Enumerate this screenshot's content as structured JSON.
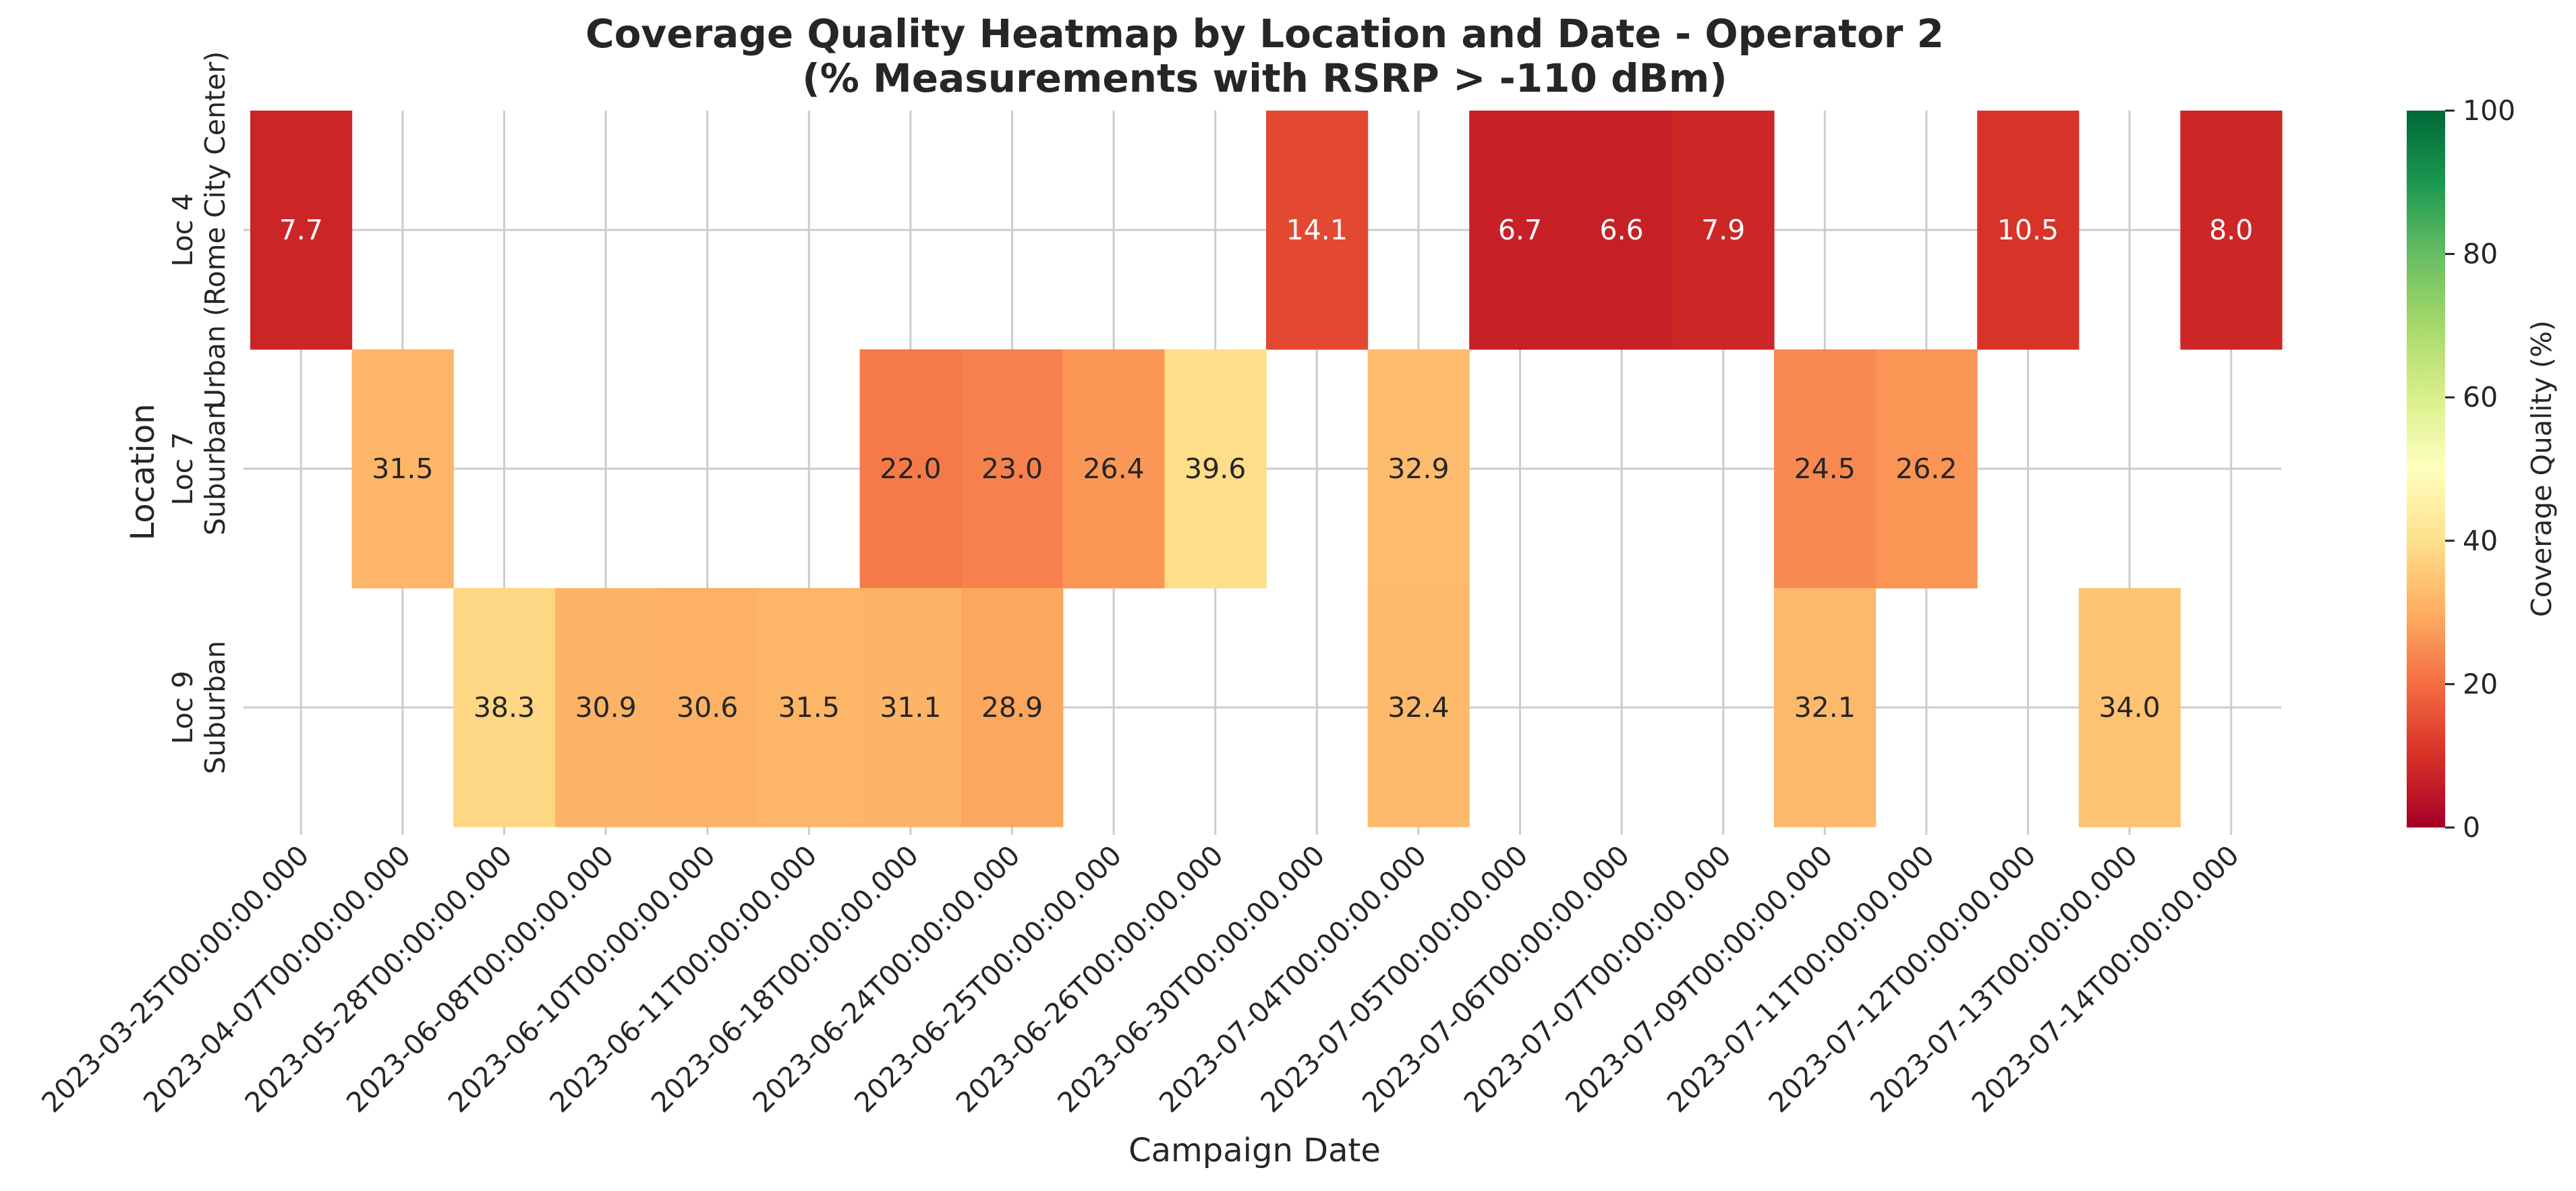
{
  "chart_data": {
    "type": "heatmap",
    "title": "Coverage Quality Heatmap by Location and Date - Operator 2",
    "subtitle": "(% Measurements with RSRP > -110 dBm)",
    "xlabel": "Campaign Date",
    "ylabel": "Location",
    "x": [
      "2023-03-25T00:00:00.000",
      "2023-04-07T00:00:00.000",
      "2023-05-28T00:00:00.000",
      "2023-06-08T00:00:00.000",
      "2023-06-10T00:00:00.000",
      "2023-06-11T00:00:00.000",
      "2023-06-18T00:00:00.000",
      "2023-06-24T00:00:00.000",
      "2023-06-25T00:00:00.000",
      "2023-06-26T00:00:00.000",
      "2023-06-30T00:00:00.000",
      "2023-07-04T00:00:00.000",
      "2023-07-05T00:00:00.000",
      "2023-07-06T00:00:00.000",
      "2023-07-07T00:00:00.000",
      "2023-07-09T00:00:00.000",
      "2023-07-11T00:00:00.000",
      "2023-07-12T00:00:00.000",
      "2023-07-13T00:00:00.000",
      "2023-07-14T00:00:00.000"
    ],
    "y": [
      [
        "Loc 4",
        "Urban (Rome City Center)"
      ],
      [
        "Loc 7",
        "Suburban"
      ],
      [
        "Loc 9",
        "Suburban"
      ]
    ],
    "values": [
      [
        7.7,
        null,
        null,
        null,
        null,
        null,
        null,
        null,
        null,
        null,
        14.1,
        null,
        6.7,
        6.6,
        7.9,
        null,
        null,
        10.5,
        null,
        8.0
      ],
      [
        null,
        31.5,
        null,
        null,
        null,
        null,
        22.0,
        23.0,
        26.4,
        39.6,
        null,
        32.9,
        null,
        null,
        null,
        24.5,
        26.2,
        null,
        null,
        null
      ],
      [
        null,
        null,
        38.3,
        30.9,
        30.6,
        31.5,
        31.1,
        28.9,
        null,
        null,
        null,
        32.4,
        null,
        null,
        null,
        32.1,
        null,
        null,
        34.0,
        null
      ]
    ],
    "colorbar": {
      "label": "Coverage Quality (%)",
      "min": 0,
      "max": 100,
      "ticks": [
        0,
        20,
        40,
        60,
        80,
        100
      ],
      "colormap": "RdYlGn"
    },
    "grid": true
  }
}
